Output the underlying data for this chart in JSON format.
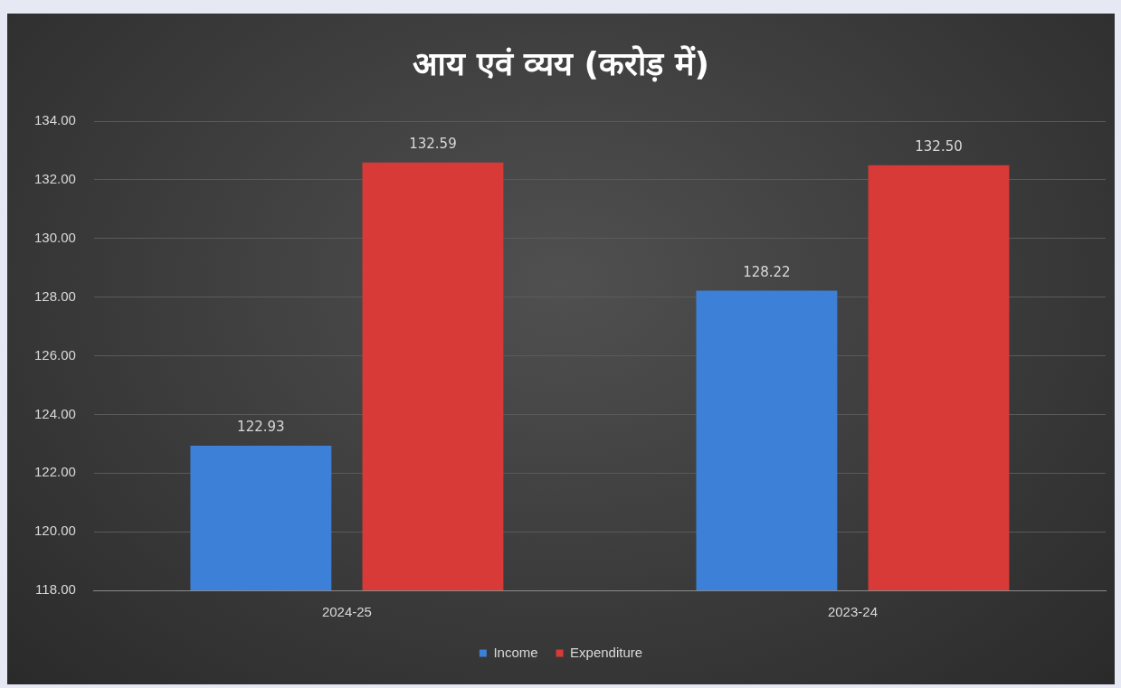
{
  "chart_data": {
    "type": "bar",
    "title": "आय  एवं  व्यय (करोड़ में)",
    "categories": [
      "2024-25",
      "2023-24"
    ],
    "series": [
      {
        "name": "Income",
        "color": "#3d80d8",
        "values": [
          122.93,
          128.22
        ],
        "value_labels": [
          "122.93",
          "128.22"
        ]
      },
      {
        "name": "Expenditure",
        "color": "#d83b37",
        "values": [
          132.59,
          132.5
        ],
        "value_labels": [
          "132.59",
          "132.50"
        ]
      }
    ],
    "ylim": [
      118,
      134
    ],
    "yticks": [
      {
        "value": 118,
        "label": "118.00"
      },
      {
        "value": 120,
        "label": "120.00"
      },
      {
        "value": 122,
        "label": "122.00"
      },
      {
        "value": 124,
        "label": "124.00"
      },
      {
        "value": 126,
        "label": "126.00"
      },
      {
        "value": 128,
        "label": "128.00"
      },
      {
        "value": 130,
        "label": "130.00"
      },
      {
        "value": 132,
        "label": "132.00"
      },
      {
        "value": 134,
        "label": "134.00"
      }
    ],
    "grid": "y",
    "legend": "bottom"
  }
}
